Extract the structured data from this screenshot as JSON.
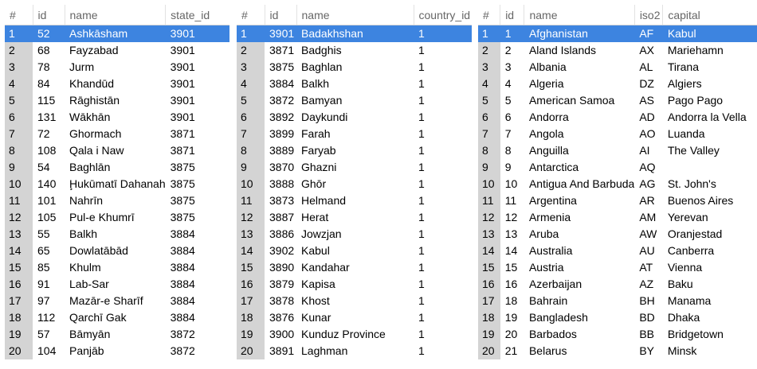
{
  "tables": [
    {
      "columns": [
        "#",
        "id",
        "name",
        "state_id"
      ],
      "rows": [
        [
          "1",
          "52",
          "Ashkāsham",
          "3901"
        ],
        [
          "2",
          "68",
          "Fayzabad",
          "3901"
        ],
        [
          "3",
          "78",
          "Jurm",
          "3901"
        ],
        [
          "4",
          "84",
          "Khandūd",
          "3901"
        ],
        [
          "5",
          "115",
          "Rāghistān",
          "3901"
        ],
        [
          "6",
          "131",
          "Wākhān",
          "3901"
        ],
        [
          "7",
          "72",
          "Ghormach",
          "3871"
        ],
        [
          "8",
          "108",
          "Qala i Naw",
          "3871"
        ],
        [
          "9",
          "54",
          "Baghlān",
          "3875"
        ],
        [
          "10",
          "140",
          "Ḩukūmatī Dahanah",
          "3875"
        ],
        [
          "11",
          "101",
          "Nahrīn",
          "3875"
        ],
        [
          "12",
          "105",
          "Pul-e Khumrī",
          "3875"
        ],
        [
          "13",
          "55",
          "Balkh",
          "3884"
        ],
        [
          "14",
          "65",
          "Dowlatābād",
          "3884"
        ],
        [
          "15",
          "85",
          "Khulm",
          "3884"
        ],
        [
          "16",
          "91",
          "Lab-Sar",
          "3884"
        ],
        [
          "17",
          "97",
          "Mazār-e Sharīf",
          "3884"
        ],
        [
          "18",
          "112",
          "Qarchī Gak",
          "3884"
        ],
        [
          "19",
          "57",
          "Bāmyān",
          "3872"
        ],
        [
          "20",
          "104",
          "Panjāb",
          "3872"
        ]
      ]
    },
    {
      "columns": [
        "#",
        "id",
        "name",
        "country_id"
      ],
      "rows": [
        [
          "1",
          "3901",
          "Badakhshan",
          "1"
        ],
        [
          "2",
          "3871",
          "Badghis",
          "1"
        ],
        [
          "3",
          "3875",
          "Baghlan",
          "1"
        ],
        [
          "4",
          "3884",
          "Balkh",
          "1"
        ],
        [
          "5",
          "3872",
          "Bamyan",
          "1"
        ],
        [
          "6",
          "3892",
          "Daykundi",
          "1"
        ],
        [
          "7",
          "3899",
          "Farah",
          "1"
        ],
        [
          "8",
          "3889",
          "Faryab",
          "1"
        ],
        [
          "9",
          "3870",
          "Ghazni",
          "1"
        ],
        [
          "10",
          "3888",
          "Ghōr",
          "1"
        ],
        [
          "11",
          "3873",
          "Helmand",
          "1"
        ],
        [
          "12",
          "3887",
          "Herat",
          "1"
        ],
        [
          "13",
          "3886",
          "Jowzjan",
          "1"
        ],
        [
          "14",
          "3902",
          "Kabul",
          "1"
        ],
        [
          "15",
          "3890",
          "Kandahar",
          "1"
        ],
        [
          "16",
          "3879",
          "Kapisa",
          "1"
        ],
        [
          "17",
          "3878",
          "Khost",
          "1"
        ],
        [
          "18",
          "3876",
          "Kunar",
          "1"
        ],
        [
          "19",
          "3900",
          "Kunduz Province",
          "1"
        ],
        [
          "20",
          "3891",
          "Laghman",
          "1"
        ]
      ]
    },
    {
      "columns": [
        "#",
        "id",
        "name",
        "iso2",
        "capital"
      ],
      "rows": [
        [
          "1",
          "1",
          "Afghanistan",
          "AF",
          "Kabul"
        ],
        [
          "2",
          "2",
          "Aland Islands",
          "AX",
          "Mariehamn"
        ],
        [
          "3",
          "3",
          "Albania",
          "AL",
          "Tirana"
        ],
        [
          "4",
          "4",
          "Algeria",
          "DZ",
          "Algiers"
        ],
        [
          "5",
          "5",
          "American Samoa",
          "AS",
          "Pago Pago"
        ],
        [
          "6",
          "6",
          "Andorra",
          "AD",
          "Andorra la Vella"
        ],
        [
          "7",
          "7",
          "Angola",
          "AO",
          "Luanda"
        ],
        [
          "8",
          "8",
          "Anguilla",
          "AI",
          "The Valley"
        ],
        [
          "9",
          "9",
          "Antarctica",
          "AQ",
          ""
        ],
        [
          "10",
          "10",
          "Antigua And Barbuda",
          "AG",
          "St. John's"
        ],
        [
          "11",
          "11",
          "Argentina",
          "AR",
          "Buenos Aires"
        ],
        [
          "12",
          "12",
          "Armenia",
          "AM",
          "Yerevan"
        ],
        [
          "13",
          "13",
          "Aruba",
          "AW",
          "Oranjestad"
        ],
        [
          "14",
          "14",
          "Australia",
          "AU",
          "Canberra"
        ],
        [
          "15",
          "15",
          "Austria",
          "AT",
          "Vienna"
        ],
        [
          "16",
          "16",
          "Azerbaijan",
          "AZ",
          "Baku"
        ],
        [
          "17",
          "18",
          "Bahrain",
          "BH",
          "Manama"
        ],
        [
          "18",
          "19",
          "Bangladesh",
          "BD",
          "Dhaka"
        ],
        [
          "19",
          "20",
          "Barbados",
          "BB",
          "Bridgetown"
        ],
        [
          "20",
          "21",
          "Belarus",
          "BY",
          "Minsk"
        ]
      ]
    }
  ],
  "selected_row_index": 0
}
